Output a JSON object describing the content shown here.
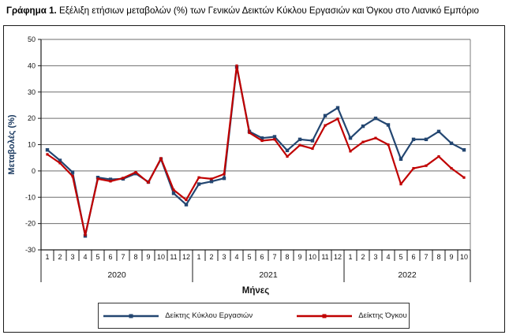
{
  "title": {
    "prefix": "Γράφημα 1.",
    "rest": " Εξέλιξη ετήσιων μεταβολών (%) των Γενικών Δεικτών Κύκλου Εργασιών και Όγκου στο Λιανικό Εμπόριο"
  },
  "chart_data": {
    "type": "line",
    "ylabel": "Μεταβολές (%)",
    "xlabel": "Μήνες",
    "ylim": [
      -30,
      50
    ],
    "ytick_step": 10,
    "yticks": [
      "50",
      "40",
      "30",
      "20",
      "10",
      "0",
      "-10",
      "-20",
      "-30"
    ],
    "grid": true,
    "legend_position": "bottom",
    "colors": {
      "grid": "#6e6e6e",
      "axis": "#1a1a1a",
      "text": "#111111",
      "axis_title": "#17375E"
    },
    "years": [
      {
        "label": "2020",
        "months": [
          "1",
          "2",
          "3",
          "4",
          "5",
          "6",
          "7",
          "8",
          "9",
          "10",
          "11",
          "12"
        ]
      },
      {
        "label": "2021",
        "months": [
          "1",
          "2",
          "3",
          "4",
          "5",
          "6",
          "7",
          "8",
          "9",
          "10",
          "11",
          "12"
        ]
      },
      {
        "label": "2022",
        "months": [
          "1",
          "2",
          "3",
          "4",
          "5",
          "6",
          "7",
          "8",
          "9",
          "10"
        ]
      }
    ],
    "series": [
      {
        "name": "Δείκτης Κύκλου Εργασιών",
        "color": "#234671",
        "marker": "square",
        "values": [
          8,
          4,
          -0.5,
          -24.7,
          -2.5,
          -3.2,
          -3,
          -1,
          -4.2,
          4.5,
          -8.5,
          -12.8,
          -5,
          -4,
          -2.8,
          39.5,
          15,
          12.5,
          13,
          7.8,
          12,
          11.5,
          21,
          24,
          12.5,
          17,
          20,
          17.5,
          4.5,
          12,
          12,
          15,
          10.5,
          8
        ]
      },
      {
        "name": "Δείκτης Όγκου",
        "color": "#C00000",
        "marker": "square",
        "values": [
          6.3,
          3,
          -2,
          -24.3,
          -3,
          -3.9,
          -2.7,
          -0.5,
          -4.4,
          4.8,
          -7.2,
          -11,
          -2.5,
          -3,
          -1.2,
          40,
          14.5,
          11.5,
          12,
          5.5,
          9.8,
          8.5,
          17.3,
          19.8,
          7.5,
          11,
          12.5,
          10,
          -5,
          1,
          2,
          5.5,
          1,
          -2.5
        ]
      }
    ]
  }
}
